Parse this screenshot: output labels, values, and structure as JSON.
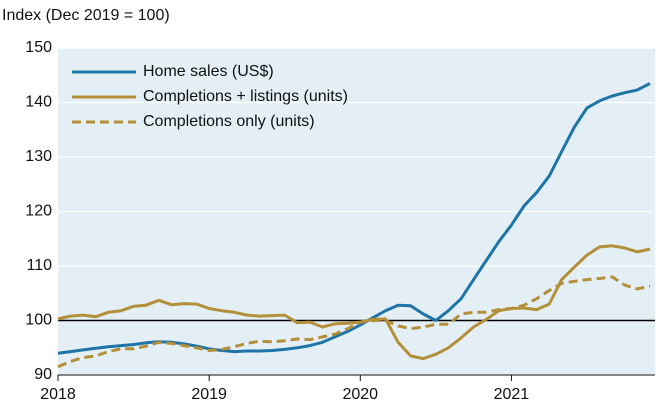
{
  "chart_data": {
    "type": "line",
    "subtitle": "Index (Dec 2019 = 100)",
    "x": [
      2018,
      2018.083,
      2018.167,
      2018.25,
      2018.333,
      2018.417,
      2018.5,
      2018.583,
      2018.667,
      2018.75,
      2018.833,
      2018.917,
      2019,
      2019.083,
      2019.167,
      2019.25,
      2019.333,
      2019.417,
      2019.5,
      2019.583,
      2019.667,
      2019.75,
      2019.833,
      2019.917,
      2020,
      2020.083,
      2020.167,
      2020.25,
      2020.333,
      2020.417,
      2020.5,
      2020.583,
      2020.667,
      2020.75,
      2020.833,
      2020.917,
      2021,
      2021.083,
      2021.167,
      2021.25,
      2021.333,
      2021.417,
      2021.5,
      2021.583,
      2021.667,
      2021.75,
      2021.833,
      2021.917
    ],
    "xlim": [
      2018,
      2021.95
    ],
    "xticks": [
      2018,
      2019,
      2020,
      2021
    ],
    "ylim": [
      90,
      150
    ],
    "yticks": [
      90,
      100,
      110,
      120,
      130,
      140,
      150
    ],
    "grid": true,
    "reference_line": 100,
    "legend": "top-left",
    "series": [
      {
        "name": "Home sales (US$)",
        "color": "#1f74a7",
        "dash": false,
        "values": [
          94,
          94.3,
          94.6,
          94.9,
          95.2,
          95.4,
          95.6,
          95.9,
          96.1,
          96,
          95.7,
          95.3,
          94.8,
          94.5,
          94.3,
          94.4,
          94.4,
          94.5,
          94.7,
          95,
          95.4,
          96,
          97,
          98,
          99.2,
          100.5,
          101.8,
          102.8,
          102.7,
          101.2,
          100,
          101.8,
          104,
          107.5,
          111,
          114.5,
          117.5,
          121,
          123.5,
          126.5,
          131,
          135.5,
          139,
          140.3,
          141.2,
          141.8,
          142.3,
          143.5
        ]
      },
      {
        "name": "Completions + listings (units)",
        "color": "#b38f3a",
        "dash": false,
        "values": [
          100.3,
          100.8,
          101,
          100.7,
          101.5,
          101.8,
          102.6,
          102.8,
          103.7,
          102.9,
          103.1,
          103,
          102.2,
          101.8,
          101.5,
          101,
          100.8,
          100.9,
          101,
          99.6,
          99.7,
          98.8,
          99.4,
          99.5,
          99.7,
          100.2,
          100.3,
          96,
          93.5,
          93,
          93.8,
          95,
          96.8,
          98.8,
          100.2,
          101.8,
          102.2,
          102.3,
          102,
          103,
          107.5,
          109.8,
          112,
          113.5,
          113.7,
          113.3,
          112.6,
          113.1
        ]
      },
      {
        "name": "Completions only (units)",
        "color": "#b38f3a",
        "dash": true,
        "values": [
          91.5,
          92.5,
          93.2,
          93.5,
          94.3,
          94.8,
          94.8,
          95.3,
          96,
          95.8,
          95.4,
          95,
          94.5,
          94.7,
          95.2,
          95.8,
          96.2,
          96.1,
          96.3,
          96.6,
          96.5,
          97,
          97.5,
          98.5,
          99.7,
          100,
          100,
          99,
          98.5,
          98.8,
          99.3,
          99.3,
          101.2,
          101.5,
          101.5,
          102,
          102.2,
          102.8,
          104,
          105.5,
          106.8,
          107.2,
          107.5,
          107.7,
          108,
          106.5,
          105.8,
          106.3
        ]
      }
    ]
  }
}
